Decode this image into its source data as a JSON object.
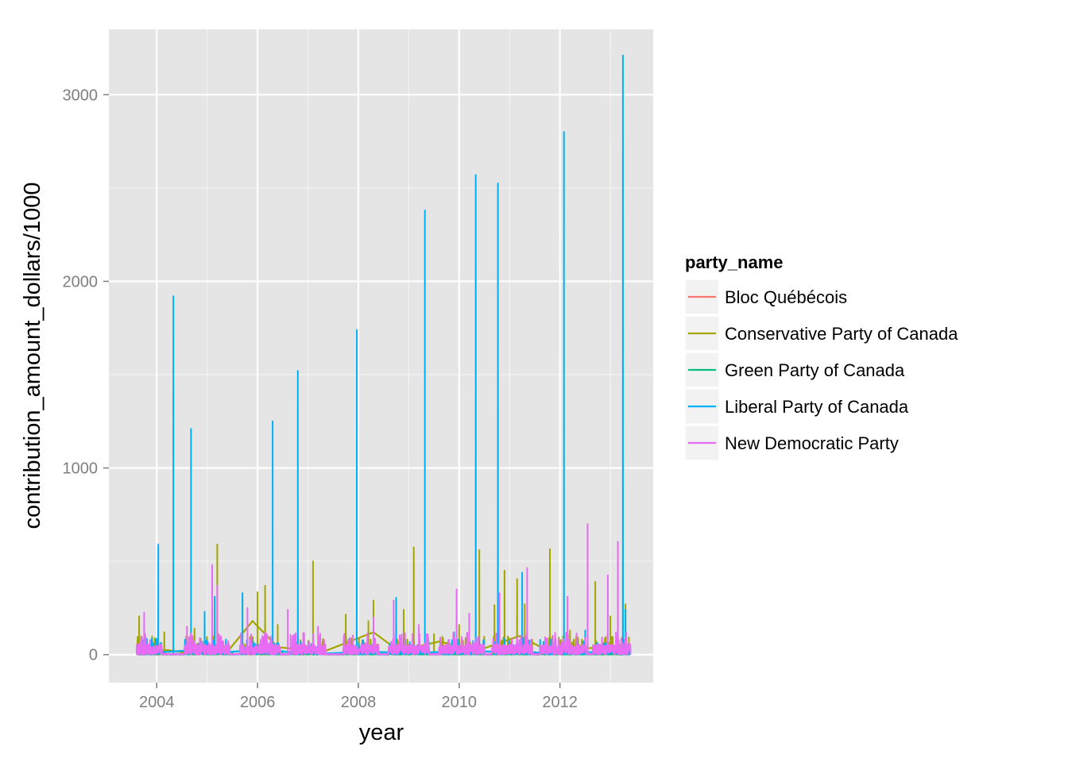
{
  "chart_data": {
    "type": "line",
    "title": "",
    "xlabel": "year",
    "ylabel": "contribution_amount_dollars/1000",
    "xlim": [
      2003.05,
      2013.85
    ],
    "ylim": [
      -150,
      3350
    ],
    "x_ticks": [
      2004,
      2006,
      2008,
      2010,
      2012
    ],
    "y_ticks": [
      0,
      1000,
      2000,
      3000
    ],
    "x_tick_labels": [
      "2004",
      "2006",
      "2008",
      "2010",
      "2012"
    ],
    "y_tick_labels": [
      "0",
      "1000",
      "2000",
      "3000"
    ],
    "grid": true,
    "legend_position": "right",
    "legend_title": "party_name",
    "series": [
      {
        "name": "Bloc Québécois",
        "color": "#F8766D",
        "spikes": [
          [
            2003.7,
            25
          ],
          [
            2004.5,
            20
          ],
          [
            2005.2,
            30
          ],
          [
            2006.0,
            25
          ],
          [
            2007.0,
            20
          ],
          [
            2008.0,
            25
          ],
          [
            2009.0,
            20
          ],
          [
            2010.5,
            25
          ],
          [
            2011.3,
            20
          ],
          [
            2012.5,
            25
          ],
          [
            2013.2,
            20
          ]
        ]
      },
      {
        "name": "Conservative Party of Canada",
        "color": "#A3A500",
        "spikes": [
          [
            2003.65,
            205
          ],
          [
            2004.15,
            120
          ],
          [
            2004.75,
            140
          ],
          [
            2005.2,
            590
          ],
          [
            2005.7,
            300
          ],
          [
            2006.0,
            335
          ],
          [
            2006.15,
            370
          ],
          [
            2006.4,
            160
          ],
          [
            2007.1,
            500
          ],
          [
            2007.75,
            215
          ],
          [
            2008.2,
            180
          ],
          [
            2008.3,
            290
          ],
          [
            2008.9,
            240
          ],
          [
            2009.1,
            575
          ],
          [
            2009.5,
            110
          ],
          [
            2010.0,
            160
          ],
          [
            2010.4,
            560
          ],
          [
            2010.7,
            265
          ],
          [
            2010.9,
            450
          ],
          [
            2011.15,
            405
          ],
          [
            2011.3,
            270
          ],
          [
            2011.8,
            565
          ],
          [
            2012.2,
            130
          ],
          [
            2012.7,
            390
          ],
          [
            2013.0,
            205
          ],
          [
            2013.3,
            270
          ]
        ],
        "trend": [
          [
            2003.6,
            10
          ],
          [
            2004.2,
            25
          ],
          [
            2004.6,
            10
          ],
          [
            2005.4,
            15
          ],
          [
            2005.9,
            180
          ],
          [
            2006.4,
            40
          ],
          [
            2007.3,
            15
          ],
          [
            2008.3,
            120
          ],
          [
            2008.8,
            20
          ],
          [
            2009.6,
            70
          ],
          [
            2010.4,
            25
          ],
          [
            2011.2,
            100
          ],
          [
            2011.8,
            15
          ],
          [
            2012.6,
            35
          ],
          [
            2013.4,
            55
          ]
        ]
      },
      {
        "name": "Green Party of Canada",
        "color": "#00BF7D",
        "spikes": [
          [
            2004.0,
            18
          ],
          [
            2005.5,
            15
          ],
          [
            2006.5,
            20
          ],
          [
            2008.5,
            15
          ],
          [
            2010.0,
            18
          ],
          [
            2011.5,
            15
          ],
          [
            2013.0,
            20
          ]
        ]
      },
      {
        "name": "Liberal Party of Canada",
        "color": "#00B0F6",
        "spikes": [
          [
            2004.03,
            590
          ],
          [
            2004.33,
            1920
          ],
          [
            2004.68,
            1210
          ],
          [
            2004.95,
            230
          ],
          [
            2005.15,
            310
          ],
          [
            2005.7,
            330
          ],
          [
            2006.3,
            1250
          ],
          [
            2006.3,
            720
          ],
          [
            2006.8,
            1520
          ],
          [
            2007.97,
            1740
          ],
          [
            2008.75,
            305
          ],
          [
            2009.32,
            2380
          ],
          [
            2009.9,
            120
          ],
          [
            2010.33,
            2570
          ],
          [
            2010.77,
            2525
          ],
          [
            2011.25,
            440
          ],
          [
            2012.08,
            2800
          ],
          [
            2012.5,
            130
          ],
          [
            2013.25,
            3210
          ],
          [
            2013.3,
            240
          ]
        ],
        "trend": [
          [
            2003.6,
            5
          ],
          [
            2004.5,
            20
          ],
          [
            2005.2,
            10
          ],
          [
            2006.0,
            25
          ],
          [
            2007.2,
            5
          ],
          [
            2008.2,
            15
          ],
          [
            2009.2,
            10
          ],
          [
            2010.2,
            20
          ],
          [
            2011.3,
            10
          ],
          [
            2012.2,
            15
          ],
          [
            2013.4,
            10
          ]
        ]
      },
      {
        "name": "New Democratic Party",
        "color": "#E76BF3",
        "spikes": [
          [
            2003.75,
            225
          ],
          [
            2004.6,
            150
          ],
          [
            2005.1,
            480
          ],
          [
            2005.2,
            370
          ],
          [
            2005.8,
            250
          ],
          [
            2006.6,
            240
          ],
          [
            2007.2,
            150
          ],
          [
            2008.3,
            200
          ],
          [
            2008.7,
            290
          ],
          [
            2009.2,
            160
          ],
          [
            2009.95,
            350
          ],
          [
            2010.2,
            220
          ],
          [
            2010.8,
            330
          ],
          [
            2011.35,
            465
          ],
          [
            2012.15,
            310
          ],
          [
            2012.55,
            700
          ],
          [
            2012.95,
            425
          ],
          [
            2013.15,
            605
          ]
        ]
      }
    ]
  }
}
